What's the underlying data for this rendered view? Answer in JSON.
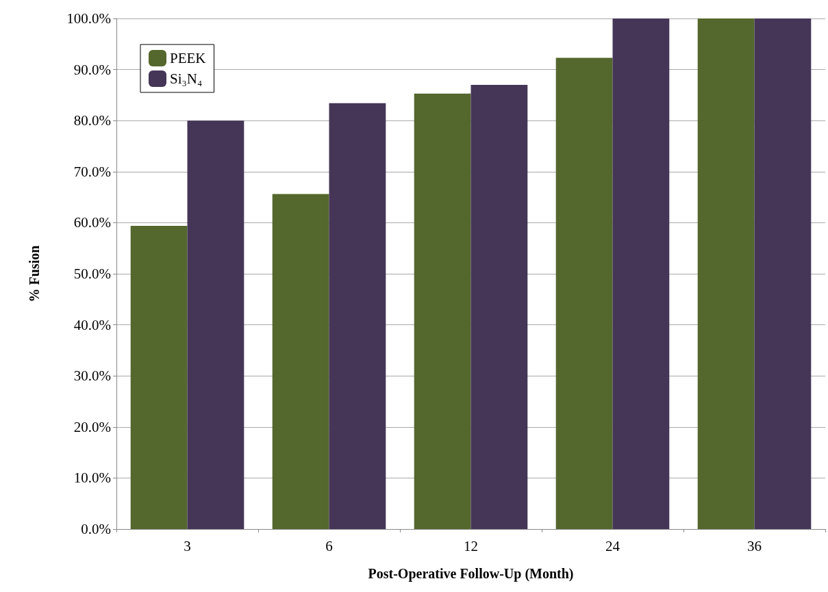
{
  "chart_data": {
    "type": "bar",
    "xlabel": "Post-Operative Follow-Up (Month)",
    "ylabel": "% Fusion",
    "categories": [
      "3",
      "6",
      "12",
      "24",
      "36"
    ],
    "series": [
      {
        "name": "PEEK",
        "color": "#54672d",
        "values": [
          59.4,
          65.6,
          85.3,
          92.3,
          100
        ]
      },
      {
        "name": "Si₃N₄",
        "color": "#453657",
        "values": [
          80.0,
          83.4,
          87.0,
          100,
          100
        ]
      }
    ],
    "ylim": [
      0,
      100
    ],
    "yticks": [
      {
        "value": 0,
        "label": "0.0%"
      },
      {
        "value": 10,
        "label": "10.0%"
      },
      {
        "value": 20,
        "label": "20.0%"
      },
      {
        "value": 30,
        "label": "30.0%"
      },
      {
        "value": 40,
        "label": "40.0%"
      },
      {
        "value": 50,
        "label": "50.0%"
      },
      {
        "value": 60,
        "label": "60.0%"
      },
      {
        "value": 70,
        "label": "70.0%"
      },
      {
        "value": 80,
        "label": "80.0%"
      },
      {
        "value": 90,
        "label": "90.0%"
      },
      {
        "value": 100,
        "label": "100.0%"
      }
    ],
    "grid": "y",
    "legend": "top left"
  }
}
